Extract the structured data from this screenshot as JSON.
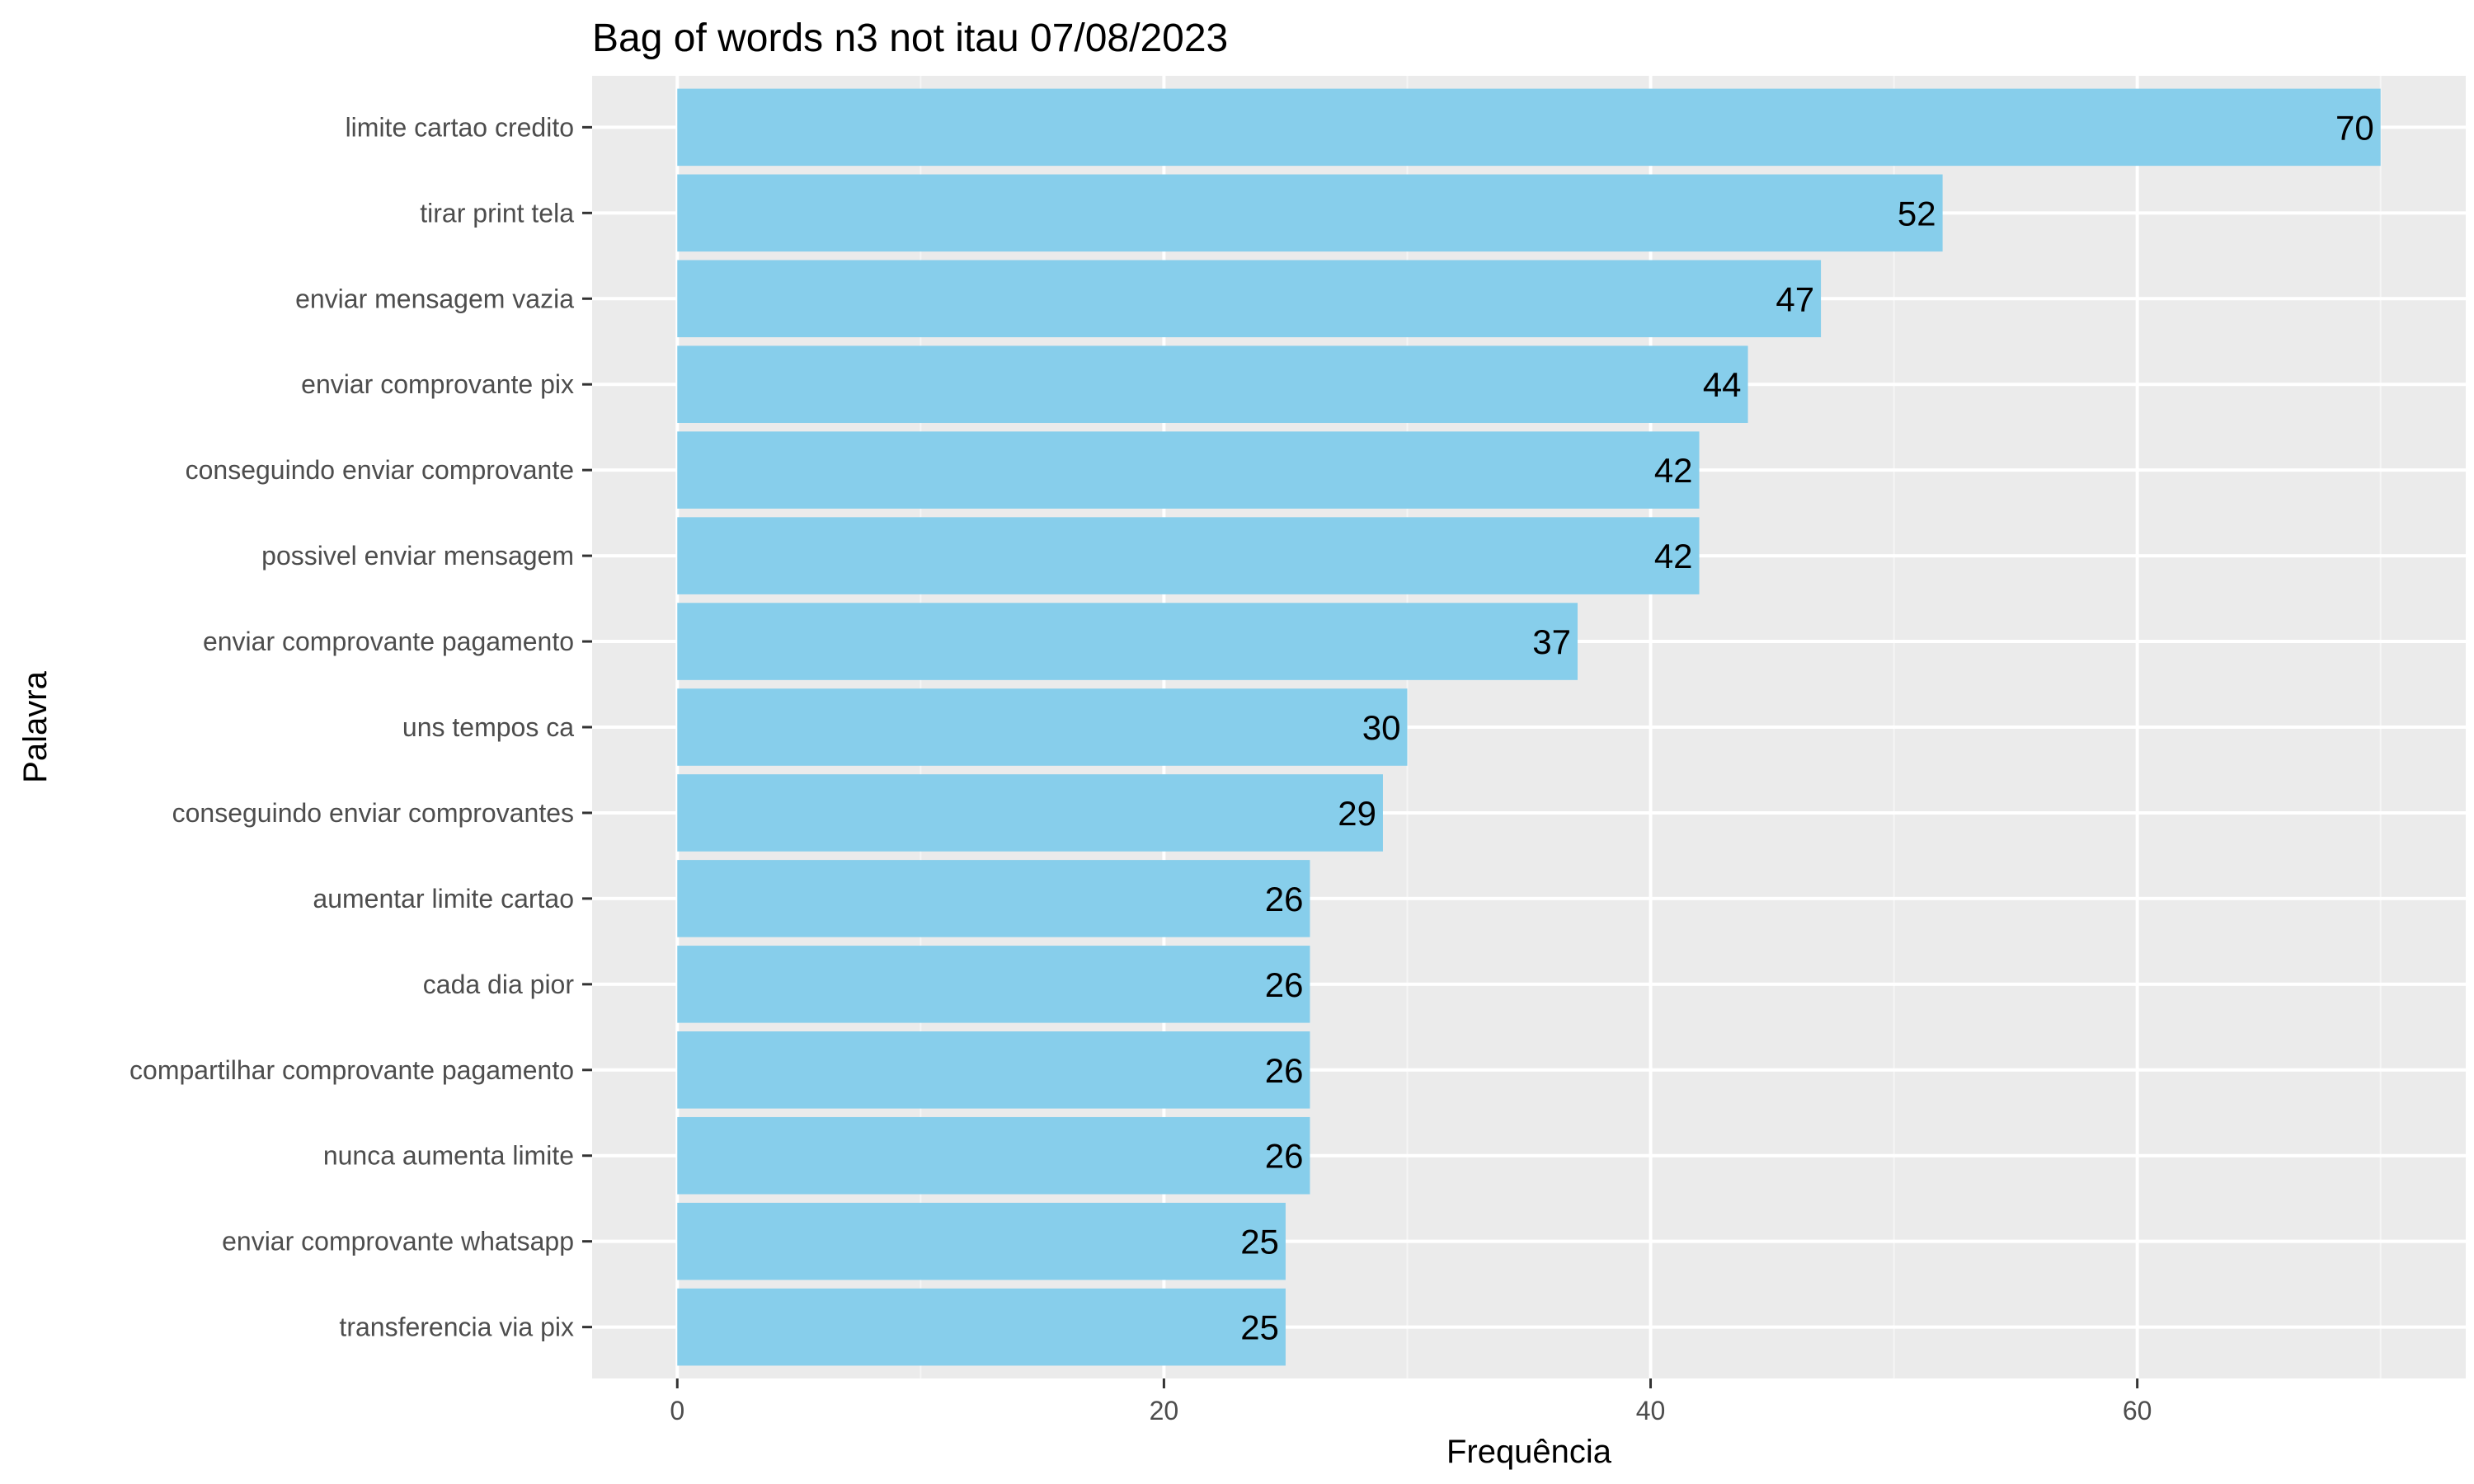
{
  "chart_data": {
    "type": "bar",
    "orientation": "horizontal",
    "title": "Bag of words n3 not itau 07/08/2023",
    "xlabel": "Frequência",
    "ylabel": "Palavra",
    "xlim": [
      -3.5,
      73.5
    ],
    "xticks": [
      0,
      20,
      40,
      60
    ],
    "grid": true,
    "legend": "none",
    "colors": {
      "bar": "#87ceeb",
      "panel_background": "#ebebeb",
      "grid_major": "#ffffff",
      "grid_minor": "#f5f5f5",
      "tick_text": "#4d4d4d",
      "text": "#000000"
    },
    "categories": [
      "limite cartao credito",
      "tirar print tela",
      "enviar mensagem vazia",
      "enviar comprovante pix",
      "conseguindo enviar comprovante",
      "possivel enviar mensagem",
      "enviar comprovante pagamento",
      "uns tempos ca",
      "conseguindo enviar comprovantes",
      "aumentar limite cartao",
      "cada dia pior",
      "compartilhar comprovante pagamento",
      "nunca aumenta limite",
      "enviar comprovante whatsapp",
      "transferencia via pix"
    ],
    "values": [
      70,
      52,
      47,
      44,
      42,
      42,
      37,
      30,
      29,
      26,
      26,
      26,
      26,
      25,
      25
    ]
  }
}
